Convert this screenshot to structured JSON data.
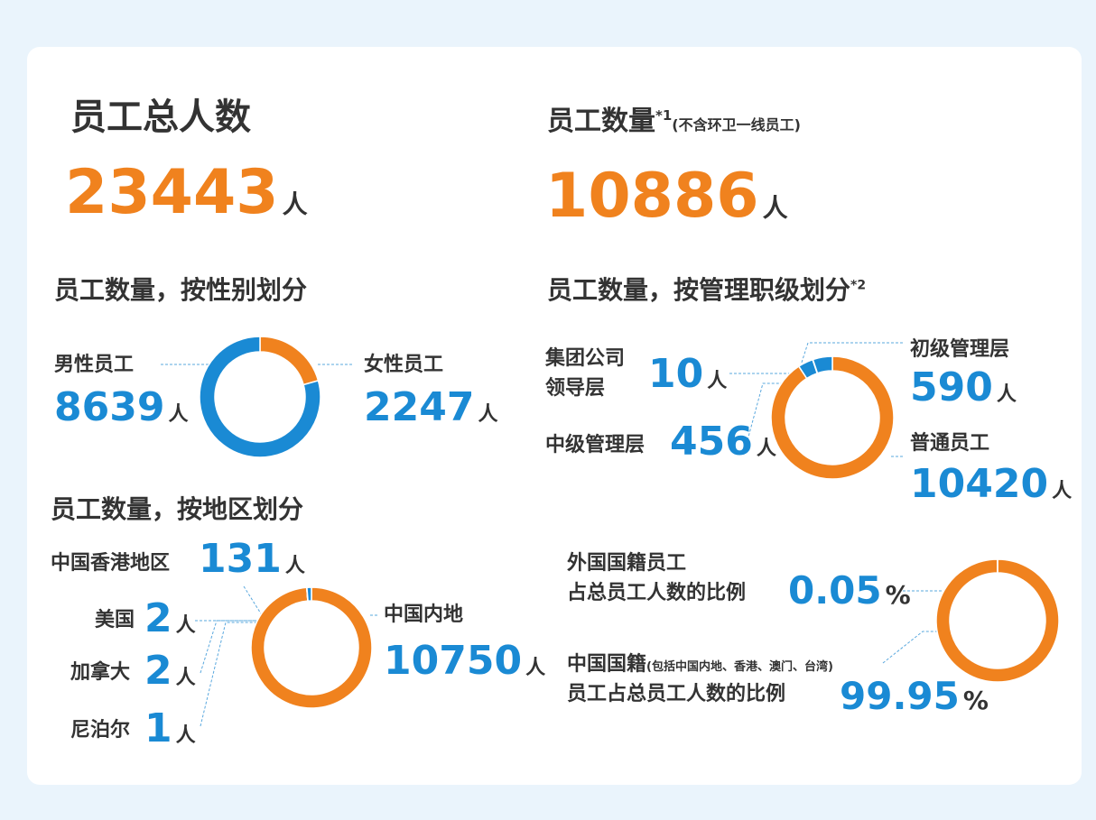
{
  "totals": [
    {
      "title": "员工总人数",
      "value": 23443,
      "unit": "人"
    },
    {
      "title": "员工数量",
      "note": "*1",
      "subtitle": "(不含环卫一线员工)",
      "value": 10886,
      "unit": "人"
    }
  ],
  "chart_data": [
    {
      "type": "donut",
      "title": "员工数量，按性别划分",
      "categories": [
        "女性员工",
        "男性员工"
      ],
      "values": [
        2247,
        8639
      ],
      "colors": [
        "#f0821e",
        "#1a8ad4"
      ],
      "unit": "人"
    },
    {
      "type": "donut",
      "title": "员工数量，按管理职级划分",
      "note": "*2",
      "categories": [
        "普通员工",
        "中级管理层",
        [
          "集团公司",
          "领导层"
        ],
        "初级管理层"
      ],
      "values": [
        10420,
        456,
        10,
        590
      ],
      "colors": [
        "#f0821e",
        "#1a8ad4",
        "#1a8ad4",
        "#1a8ad4"
      ],
      "unit": "人"
    },
    {
      "type": "donut",
      "title": "员工数量，按地区划分",
      "categories": [
        "中国内地",
        "尼泊尔",
        "加拿大",
        "美国",
        "中国香港地区"
      ],
      "values": [
        10750,
        1,
        2,
        2,
        131
      ],
      "colors": [
        "#f0821e",
        "#1a8ad4",
        "#1a8ad4",
        "#1a8ad4",
        "#1a8ad4"
      ],
      "unit": "人"
    },
    {
      "type": "donut",
      "categories": [
        [
          "中国国籍",
          "员工占总员工人数的比例"
        ],
        [
          "外国国籍员工",
          "占总员工人数的比例"
        ]
      ],
      "note": "(包括中国内地、香港、澳门、台湾)",
      "values": [
        99.95,
        0.05
      ],
      "colors": [
        "#f0821e",
        "#1a8ad4"
      ],
      "unit": "%"
    }
  ]
}
